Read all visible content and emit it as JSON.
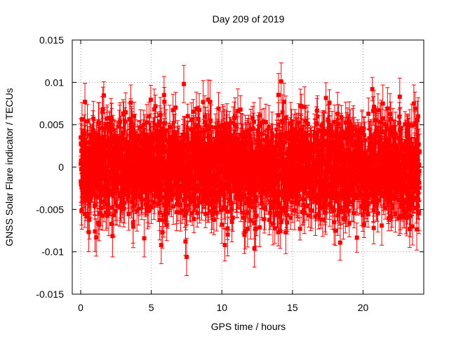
{
  "chart_data": {
    "type": "scatter",
    "title": "Day 209 of 2019",
    "xlabel": "GPS time / hours",
    "ylabel": "GNSS Solar Flare indicator / TECUs",
    "xlim": [
      -0.6,
      24.3
    ],
    "ylim": [
      -0.015,
      0.015
    ],
    "x_ticks": [
      0,
      5,
      10,
      15,
      20
    ],
    "x_tick_labels": [
      "0",
      "5",
      "10",
      "15",
      "20"
    ],
    "y_ticks": [
      -0.015,
      -0.01,
      -0.005,
      0,
      0.005,
      0.01,
      0.015
    ],
    "y_tick_labels": [
      "-0.015",
      "-0.01",
      "-0.005",
      "0",
      "0.005",
      "0.01",
      "0.015"
    ],
    "grid": true,
    "series": [
      {
        "name": "solar flare indicator",
        "color": "#ff0000",
        "marker": "square",
        "error_bars": true,
        "x_start": 0.0,
        "x_end": 24.0,
        "points_count": 2880,
        "mean": 0.0,
        "spread_std": 0.0028,
        "typical_error": 0.0022,
        "notable_points": [
          {
            "x": 0.0,
            "y": 0.0035
          },
          {
            "x": 0.3,
            "y": 0.0077
          },
          {
            "x": 1.1,
            "y": -0.0083
          },
          {
            "x": 4.5,
            "y": -0.0084
          },
          {
            "x": 5.7,
            "y": -0.0092
          },
          {
            "x": 5.9,
            "y": 0.0085
          },
          {
            "x": 7.3,
            "y": 0.0098
          },
          {
            "x": 7.5,
            "y": -0.0106
          },
          {
            "x": 10.0,
            "y": -0.0068
          },
          {
            "x": 11.6,
            "y": -0.008
          },
          {
            "x": 12.3,
            "y": -0.0096
          },
          {
            "x": 14.2,
            "y": 0.0101
          },
          {
            "x": 14.4,
            "y": 0.0077
          },
          {
            "x": 21.4,
            "y": 0.0075
          },
          {
            "x": 22.6,
            "y": 0.0083
          },
          {
            "x": 23.3,
            "y": -0.0073
          },
          {
            "x": 23.5,
            "y": -0.007
          },
          {
            "x": 23.6,
            "y": 0.0075
          },
          {
            "x": 23.9,
            "y": 0.006
          }
        ]
      }
    ]
  }
}
